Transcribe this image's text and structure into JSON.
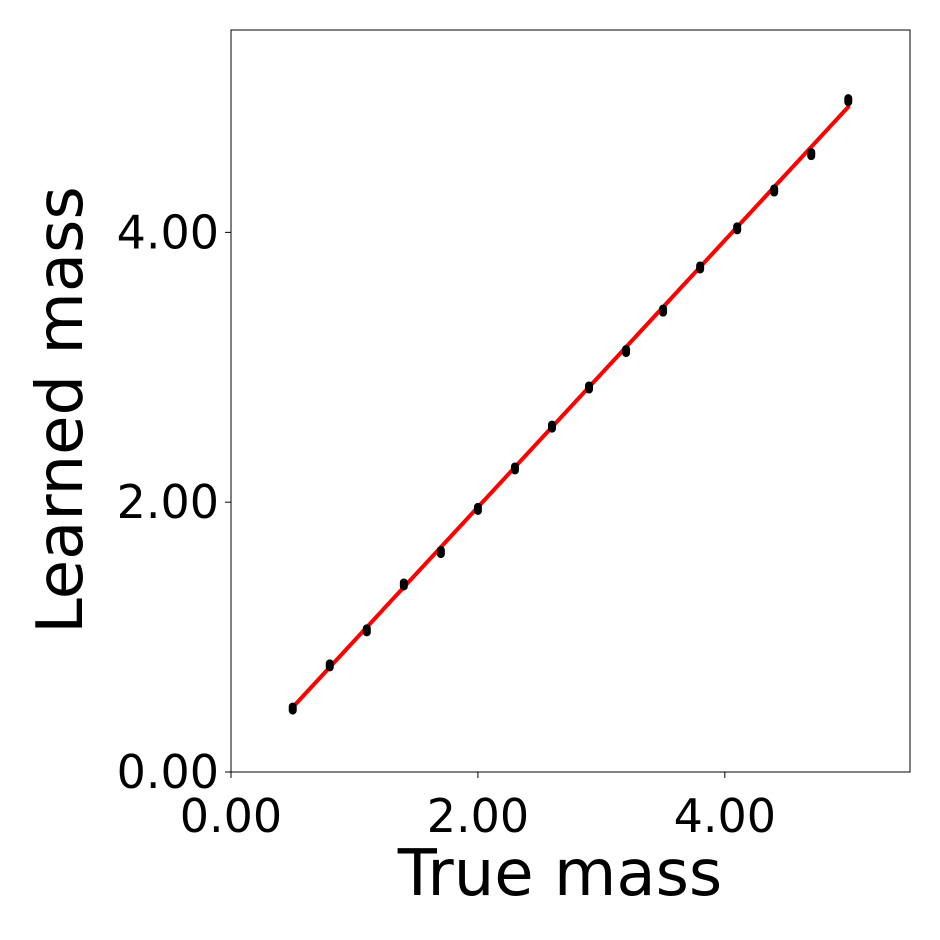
{
  "chart_data": {
    "type": "scatter",
    "xlabel": "True mass",
    "ylabel": "Learned mass",
    "xlim": [
      0,
      5.5
    ],
    "ylim": [
      0,
      5.5
    ],
    "xticks": [
      0,
      2,
      4
    ],
    "yticks": [
      0,
      2,
      4
    ],
    "xtick_labels": [
      "0.00",
      "2.00",
      "4.00"
    ],
    "ytick_labels": [
      "0.00",
      "2.00",
      "4.00"
    ],
    "grid": false,
    "colors": {
      "points": "#000000",
      "fit_line": "#ff0000"
    },
    "series": [
      {
        "kind": "points",
        "x": [
          0.5,
          0.8,
          1.1,
          1.4,
          1.7,
          2.0,
          2.3,
          2.6,
          2.9,
          3.2,
          3.5,
          3.8,
          4.1,
          4.4,
          4.7,
          5.0
        ],
        "y": [
          0.47,
          0.79,
          1.05,
          1.39,
          1.63,
          1.95,
          2.25,
          2.56,
          2.85,
          3.12,
          3.42,
          3.74,
          4.03,
          4.31,
          4.58,
          4.98
        ]
      },
      {
        "kind": "line",
        "x": [
          0.5,
          5.0
        ],
        "y": [
          0.48,
          4.93
        ]
      }
    ]
  }
}
